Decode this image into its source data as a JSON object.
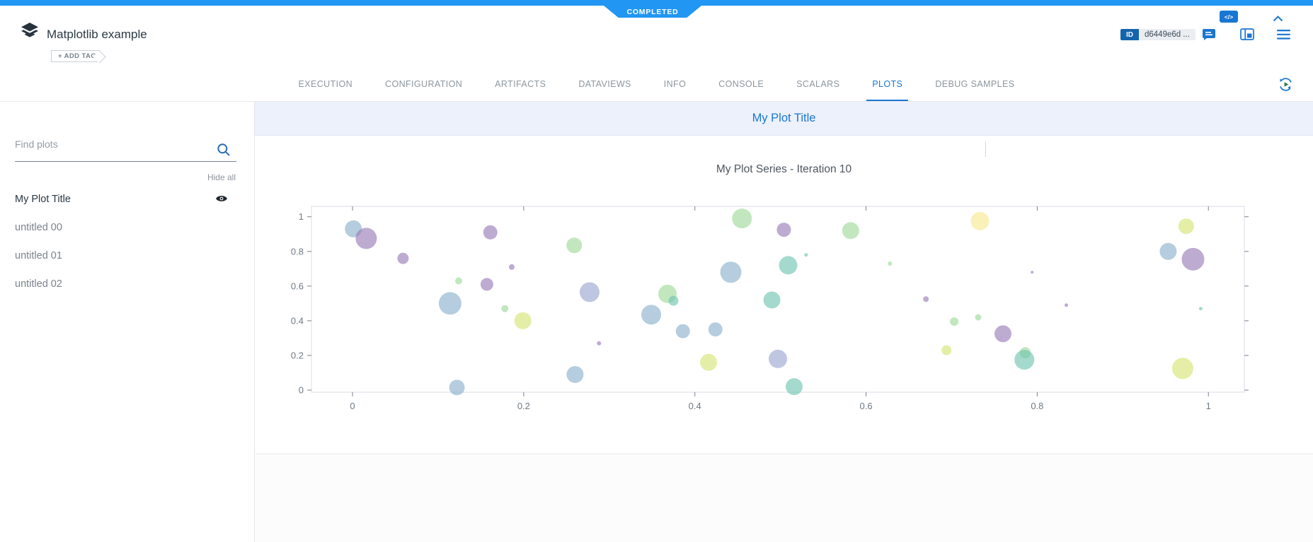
{
  "colors": {
    "accent": "#1976d2",
    "status_blue": "#2196f3",
    "panel_header_bg": "#edf1fb"
  },
  "status_badge": {
    "label": "COMPLETED"
  },
  "header": {
    "app_title": "Matplotlib example",
    "add_tag_label": "+ ADD TAG",
    "id_badge": "ID",
    "id_value": "d6449e6d ..."
  },
  "icons": {
    "logo": "stacked-layers",
    "comment": "note-lines",
    "side_panel": "panel-layout",
    "menu": "hamburger",
    "auto_refresh": "circular-arrows-with-play",
    "search": "magnifier",
    "visibility": "eye",
    "collapse": "chevron-up"
  },
  "tabs": {
    "active": "PLOTS",
    "items": [
      "EXECUTION",
      "CONFIGURATION",
      "ARTIFACTS",
      "DATAVIEWS",
      "INFO",
      "CONSOLE",
      "SCALARS",
      "PLOTS",
      "DEBUG SAMPLES"
    ]
  },
  "sidebar": {
    "search_placeholder": "Find plots",
    "hide_all_label": "Hide all",
    "plots": [
      "My Plot Title",
      "untitled 00",
      "untitled 01",
      "untitled 02"
    ],
    "selected_plot": "My Plot Title"
  },
  "panel": {
    "title": "My Plot Title",
    "code_button": "</>"
  },
  "chart_data": {
    "type": "scatter",
    "title": "My Plot Series - Iteration 10",
    "xlabel": "",
    "ylabel": "",
    "x_ticks": [
      0,
      0.2,
      0.4,
      0.6,
      0.8,
      1
    ],
    "y_ticks": [
      0,
      0.2,
      0.4,
      0.6,
      0.8,
      1
    ],
    "xlim": [
      -0.048,
      1.042
    ],
    "ylim": [
      -0.012,
      1.06
    ],
    "grid": false,
    "legend": "none",
    "marker_opacity": 0.62,
    "palette": {
      "bluegray": "#88aec9",
      "purple": "#9678b4",
      "lavender": "#98a3cf",
      "green": "#9cd898",
      "teal": "#6cc4ae",
      "yellowgreen": "#d3e470",
      "yellow": "#f6e98c"
    },
    "points_format": [
      "x",
      "y",
      "radius_px",
      "color_key"
    ],
    "points": [
      [
        0.001,
        0.93,
        12,
        "bluegray"
      ],
      [
        0.016,
        0.875,
        15,
        "purple"
      ],
      [
        0.059,
        0.76,
        8,
        "purple"
      ],
      [
        0.124,
        0.63,
        5,
        "green"
      ],
      [
        0.114,
        0.5,
        16,
        "bluegray"
      ],
      [
        0.122,
        0.015,
        11,
        "bluegray"
      ],
      [
        0.157,
        0.61,
        9,
        "purple"
      ],
      [
        0.161,
        0.91,
        10,
        "purple"
      ],
      [
        0.178,
        0.47,
        5,
        "green"
      ],
      [
        0.186,
        0.71,
        4,
        "purple"
      ],
      [
        0.199,
        0.4,
        12,
        "yellowgreen"
      ],
      [
        0.259,
        0.835,
        11,
        "green"
      ],
      [
        0.277,
        0.565,
        14,
        "lavender"
      ],
      [
        0.26,
        0.09,
        12,
        "bluegray"
      ],
      [
        0.288,
        0.27,
        3,
        "purple"
      ],
      [
        0.349,
        0.435,
        14,
        "bluegray"
      ],
      [
        0.368,
        0.555,
        13,
        "green"
      ],
      [
        0.375,
        0.515,
        7,
        "teal"
      ],
      [
        0.386,
        0.34,
        10,
        "bluegray"
      ],
      [
        0.416,
        0.16,
        12,
        "yellowgreen"
      ],
      [
        0.424,
        0.35,
        10,
        "bluegray"
      ],
      [
        0.442,
        0.68,
        15,
        "bluegray"
      ],
      [
        0.455,
        0.99,
        14,
        "green"
      ],
      [
        0.49,
        0.52,
        12,
        "teal"
      ],
      [
        0.497,
        0.18,
        13,
        "lavender"
      ],
      [
        0.504,
        0.925,
        10,
        "purple"
      ],
      [
        0.509,
        0.72,
        13,
        "teal"
      ],
      [
        0.516,
        0.02,
        12,
        "teal"
      ],
      [
        0.53,
        0.78,
        2.5,
        "teal"
      ],
      [
        0.582,
        0.92,
        12,
        "green"
      ],
      [
        0.628,
        0.73,
        3,
        "green"
      ],
      [
        0.67,
        0.525,
        4,
        "purple"
      ],
      [
        0.694,
        0.23,
        7,
        "yellowgreen"
      ],
      [
        0.703,
        0.395,
        6,
        "green"
      ],
      [
        0.731,
        0.42,
        4.5,
        "green"
      ],
      [
        0.733,
        0.975,
        13,
        "yellow"
      ],
      [
        0.76,
        0.325,
        12,
        "purple"
      ],
      [
        0.786,
        0.215,
        8,
        "green"
      ],
      [
        0.785,
        0.175,
        14,
        "teal"
      ],
      [
        0.794,
        0.68,
        2,
        "purple"
      ],
      [
        0.834,
        0.49,
        2.5,
        "purple"
      ],
      [
        0.953,
        0.8,
        12,
        "bluegray"
      ],
      [
        0.974,
        0.945,
        11,
        "yellowgreen"
      ],
      [
        0.982,
        0.755,
        16,
        "purple"
      ],
      [
        0.97,
        0.125,
        15,
        "yellowgreen"
      ],
      [
        0.991,
        0.47,
        2.5,
        "teal"
      ]
    ]
  }
}
